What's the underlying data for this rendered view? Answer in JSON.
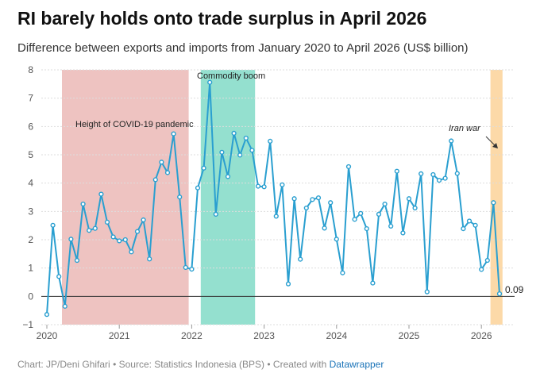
{
  "title": "RI barely holds onto trade surplus in April 2026",
  "subtitle": "Difference between exports and imports from January 2020 to April 2026 (US$ billion)",
  "footer": {
    "chart_credit": "Chart: JP/Deni Ghifari",
    "source": "Source: Statistics Indonesia (BPS)",
    "created_with": "Created with",
    "tool": "Datawrapper",
    "separator": "•"
  },
  "colors": {
    "line": "#2a9fd0",
    "covid_band": "#eec3c1",
    "commodity_band": "#94e0cf",
    "iran_band": "#fcd9a8",
    "grid": "#dddddd",
    "zero_line": "#333333"
  },
  "chart_data": {
    "type": "line",
    "title": "RI barely holds onto trade surplus in April 2026",
    "ylim": [
      -1,
      8
    ],
    "yticks": [
      -1,
      0,
      1,
      2,
      3,
      4,
      5,
      6,
      7,
      8
    ],
    "xticks": [
      "2020",
      "2021",
      "2022",
      "2023",
      "2024",
      "2025",
      "2026"
    ],
    "series": [
      {
        "name": "",
        "start": "2020-01",
        "x": [
          "2020-01",
          "2020-02",
          "2020-03",
          "2020-04",
          "2020-05",
          "2020-06",
          "2020-07",
          "2020-08",
          "2020-09",
          "2020-10",
          "2020-11",
          "2020-12",
          "2021-01",
          "2021-02",
          "2021-03",
          "2021-04",
          "2021-05",
          "2021-06",
          "2021-07",
          "2021-08",
          "2021-09",
          "2021-10",
          "2021-11",
          "2021-12",
          "2022-01",
          "2022-02",
          "2022-03",
          "2022-04",
          "2022-05",
          "2022-06",
          "2022-07",
          "2022-08",
          "2022-09",
          "2022-10",
          "2022-11",
          "2022-12",
          "2023-01",
          "2023-02",
          "2023-03",
          "2023-04",
          "2023-05",
          "2023-06",
          "2023-07",
          "2023-08",
          "2023-09",
          "2023-10",
          "2023-11",
          "2023-12",
          "2024-01",
          "2024-02",
          "2024-03",
          "2024-04",
          "2024-05",
          "2024-06",
          "2024-07",
          "2024-08",
          "2024-09",
          "2024-10",
          "2024-11",
          "2024-12",
          "2025-01",
          "2025-02",
          "2025-03",
          "2025-04",
          "2025-05",
          "2025-06",
          "2025-07",
          "2025-08",
          "2025-09",
          "2025-10",
          "2025-11",
          "2025-12",
          "2026-01",
          "2026-02",
          "2026-03",
          "2026-04"
        ],
        "values": [
          -0.64,
          2.51,
          0.7,
          -0.35,
          2.02,
          1.27,
          3.26,
          2.33,
          2.4,
          3.61,
          2.62,
          2.1,
          1.96,
          2.0,
          1.57,
          2.29,
          2.7,
          1.32,
          4.12,
          4.74,
          4.37,
          5.74,
          3.51,
          1.02,
          0.96,
          3.83,
          4.53,
          7.56,
          2.9,
          5.09,
          4.23,
          5.76,
          4.99,
          5.59,
          5.16,
          3.89,
          3.87,
          5.48,
          2.83,
          3.94,
          0.44,
          3.45,
          1.31,
          3.12,
          3.42,
          3.48,
          2.41,
          3.31,
          2.02,
          0.83,
          4.58,
          2.72,
          2.93,
          2.39,
          0.47,
          2.9,
          3.26,
          2.48,
          4.42,
          2.24,
          3.45,
          3.12,
          4.33,
          0.16,
          4.3,
          4.1,
          4.17,
          5.49,
          4.34,
          2.39,
          2.66,
          2.51,
          0.95,
          1.27,
          3.31,
          0.09
        ]
      }
    ],
    "last_value_label": "0.09",
    "bands": [
      {
        "label": "Height of COVID-19 pandemic",
        "from": "2020-04",
        "to": "2021-12"
      },
      {
        "label": "Commodity boom",
        "from": "2022-03",
        "to": "2022-11"
      },
      {
        "label": "Iran war",
        "from": "2026-03",
        "to": "2026-04"
      }
    ],
    "grid": true
  }
}
